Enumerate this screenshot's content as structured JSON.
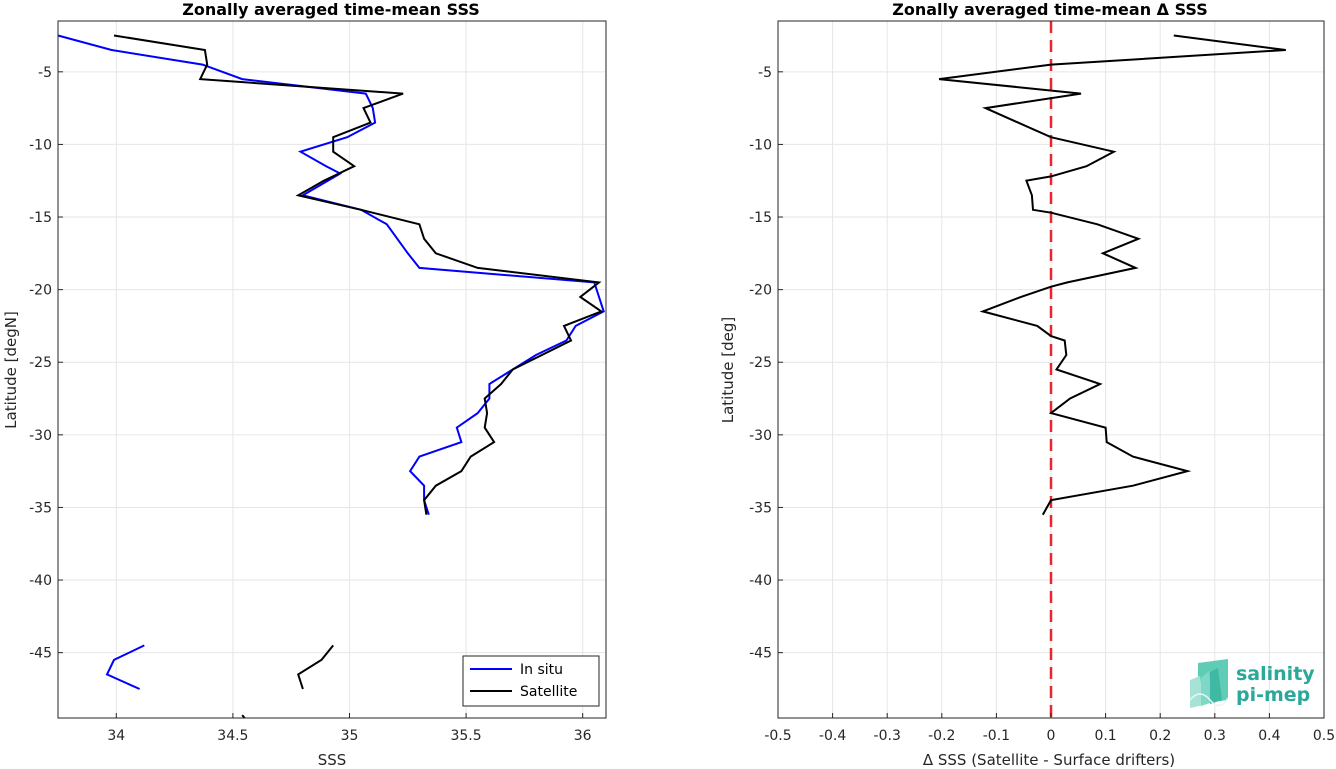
{
  "chart_data": [
    {
      "type": "line",
      "title": "Zonally averaged time-mean SSS",
      "xlabel": "SSS",
      "ylabel": "Latitude [degN]",
      "xlim": [
        33.75,
        36.1
      ],
      "ylim": [
        -49.5,
        -1.5
      ],
      "xticks": [
        34,
        34.5,
        35,
        35.5,
        36
      ],
      "xtick_labels": [
        "34",
        "34.5",
        "35",
        "35.5",
        "36"
      ],
      "yticks": [
        -5,
        -10,
        -15,
        -20,
        -25,
        -30,
        -35,
        -40,
        -45
      ],
      "ytick_labels": [
        "-5",
        "-10",
        "-15",
        "-20",
        "-25",
        "-30",
        "-35",
        "-40",
        "-45"
      ],
      "grid": true,
      "legend": "bottom-right",
      "series": [
        {
          "name": "In situ",
          "color": "#0000ff",
          "segments": [
            [
              [
                33.75,
                -2.5
              ],
              [
                33.98,
                -3.5
              ],
              [
                34.37,
                -4.5
              ],
              [
                34.54,
                -5.5
              ],
              [
                35.07,
                -6.5
              ],
              [
                35.1,
                -7.5
              ],
              [
                35.11,
                -8.5
              ],
              [
                34.99,
                -9.5
              ],
              [
                34.79,
                -10.5
              ],
              [
                34.9,
                -11.5
              ],
              [
                34.96,
                -12
              ],
              [
                34.8,
                -13.5
              ],
              [
                35.05,
                -14.5
              ],
              [
                35.16,
                -15.5
              ],
              [
                35.25,
                -17.5
              ],
              [
                35.3,
                -18.5
              ],
              [
                36.05,
                -19.5
              ],
              [
                36.09,
                -21.5
              ],
              [
                35.97,
                -22.5
              ],
              [
                35.93,
                -23.5
              ],
              [
                35.8,
                -24.5
              ],
              [
                35.7,
                -25.5
              ],
              [
                35.6,
                -26.5
              ],
              [
                35.6,
                -27.5
              ],
              [
                35.55,
                -28.5
              ],
              [
                35.46,
                -29.5
              ],
              [
                35.48,
                -30.5
              ],
              [
                35.3,
                -31.5
              ],
              [
                35.26,
                -32.5
              ],
              [
                35.32,
                -33.5
              ],
              [
                35.32,
                -34.5
              ],
              [
                35.34,
                -35.5
              ]
            ],
            [
              [
                34.12,
                -44.5
              ],
              [
                33.99,
                -45.5
              ],
              [
                33.96,
                -46.5
              ],
              [
                34.1,
                -47.5
              ]
            ]
          ]
        },
        {
          "name": "Satellite",
          "color": "#000000",
          "segments": [
            [
              [
                33.99,
                -2.5
              ],
              [
                34.38,
                -3.5
              ],
              [
                34.39,
                -4.5
              ],
              [
                34.36,
                -5.5
              ],
              [
                35.23,
                -6.5
              ],
              [
                35.06,
                -7.5
              ],
              [
                35.09,
                -8.5
              ],
              [
                34.93,
                -9.5
              ],
              [
                34.93,
                -10.5
              ],
              [
                35.02,
                -11.5
              ],
              [
                34.89,
                -12.5
              ],
              [
                34.78,
                -13.5
              ],
              [
                35.05,
                -14.5
              ],
              [
                35.3,
                -15.5
              ],
              [
                35.32,
                -16.5
              ],
              [
                35.37,
                -17.5
              ],
              [
                35.55,
                -18.5
              ],
              [
                36.07,
                -19.5
              ],
              [
                35.99,
                -20.5
              ],
              [
                36.08,
                -21.5
              ],
              [
                35.92,
                -22.5
              ],
              [
                35.95,
                -23.5
              ],
              [
                35.7,
                -25.5
              ],
              [
                35.65,
                -26.5
              ],
              [
                35.58,
                -27.5
              ],
              [
                35.59,
                -28.5
              ],
              [
                35.58,
                -29.5
              ],
              [
                35.62,
                -30.5
              ],
              [
                35.52,
                -31.5
              ],
              [
                35.48,
                -32.5
              ],
              [
                35.37,
                -33.5
              ],
              [
                35.32,
                -34.5
              ],
              [
                35.33,
                -35.5
              ]
            ],
            [
              [
                34.93,
                -44.5
              ],
              [
                34.88,
                -45.5
              ],
              [
                34.78,
                -46.5
              ],
              [
                34.8,
                -47.5
              ]
            ],
            [
              [
                34.55,
                -49.5
              ],
              [
                34.54,
                -49.3
              ]
            ]
          ]
        }
      ]
    },
    {
      "type": "line",
      "title": "Zonally averaged time-mean Δ SSS",
      "xlabel": "Δ SSS (Satellite - Surface drifters)",
      "ylabel": "Latitude [deg]",
      "xlim": [
        -0.5,
        0.5
      ],
      "ylim": [
        -49.5,
        -1.5
      ],
      "xticks": [
        -0.5,
        -0.4,
        -0.3,
        -0.2,
        -0.1,
        0,
        0.1,
        0.2,
        0.3,
        0.4,
        0.5
      ],
      "xtick_labels": [
        "-0.5",
        "-0.4",
        "-0.3",
        "-0.2",
        "-0.1",
        "0",
        "0.1",
        "0.2",
        "0.3",
        "0.4",
        "0.5"
      ],
      "yticks": [
        -5,
        -10,
        -15,
        -20,
        -25,
        -30,
        -35,
        -40,
        -45
      ],
      "ytick_labels": [
        "-5",
        "-10",
        "-15",
        "-20",
        "-25",
        "-30",
        "-35",
        "-40",
        "-45"
      ],
      "grid": true,
      "reference_line": {
        "x": 0,
        "color": "#e8262b",
        "style": "dashed"
      },
      "series": [
        {
          "color": "#000000",
          "segments": [
            [
              [
                0.225,
                -2.5
              ],
              [
                0.43,
                -3.5
              ],
              [
                0.0,
                -4.5
              ],
              [
                -0.205,
                -5.5
              ],
              [
                0.055,
                -6.5
              ],
              [
                -0.12,
                -7.5
              ],
              [
                0.0,
                -9.5
              ],
              [
                0.115,
                -10.5
              ],
              [
                0.065,
                -11.5
              ],
              [
                0.0,
                -12.2
              ],
              [
                -0.045,
                -12.5
              ],
              [
                -0.035,
                -13.5
              ],
              [
                -0.033,
                -14.5
              ],
              [
                0.0,
                -14.7
              ],
              [
                0.085,
                -15.5
              ],
              [
                0.16,
                -16.5
              ],
              [
                0.095,
                -17.5
              ],
              [
                0.155,
                -18.5
              ],
              [
                0.03,
                -19.5
              ],
              [
                0.0,
                -19.8
              ],
              [
                -0.055,
                -20.5
              ],
              [
                -0.125,
                -21.5
              ],
              [
                -0.025,
                -22.5
              ],
              [
                0.0,
                -23.2
              ],
              [
                0.025,
                -23.5
              ],
              [
                0.028,
                -24.5
              ],
              [
                0.01,
                -25.5
              ],
              [
                0.09,
                -26.5
              ],
              [
                0.035,
                -27.5
              ],
              [
                0.0,
                -28.5
              ],
              [
                0.1,
                -29.5
              ],
              [
                0.102,
                -30.5
              ],
              [
                0.15,
                -31.5
              ],
              [
                0.25,
                -32.5
              ],
              [
                0.15,
                -33.5
              ],
              [
                0.0,
                -34.5
              ],
              [
                -0.015,
                -35.5
              ]
            ]
          ]
        }
      ]
    }
  ],
  "logo": {
    "line1": "salinity",
    "line2": "pi-mep",
    "icon": "salinity-wave-logo-icon"
  }
}
